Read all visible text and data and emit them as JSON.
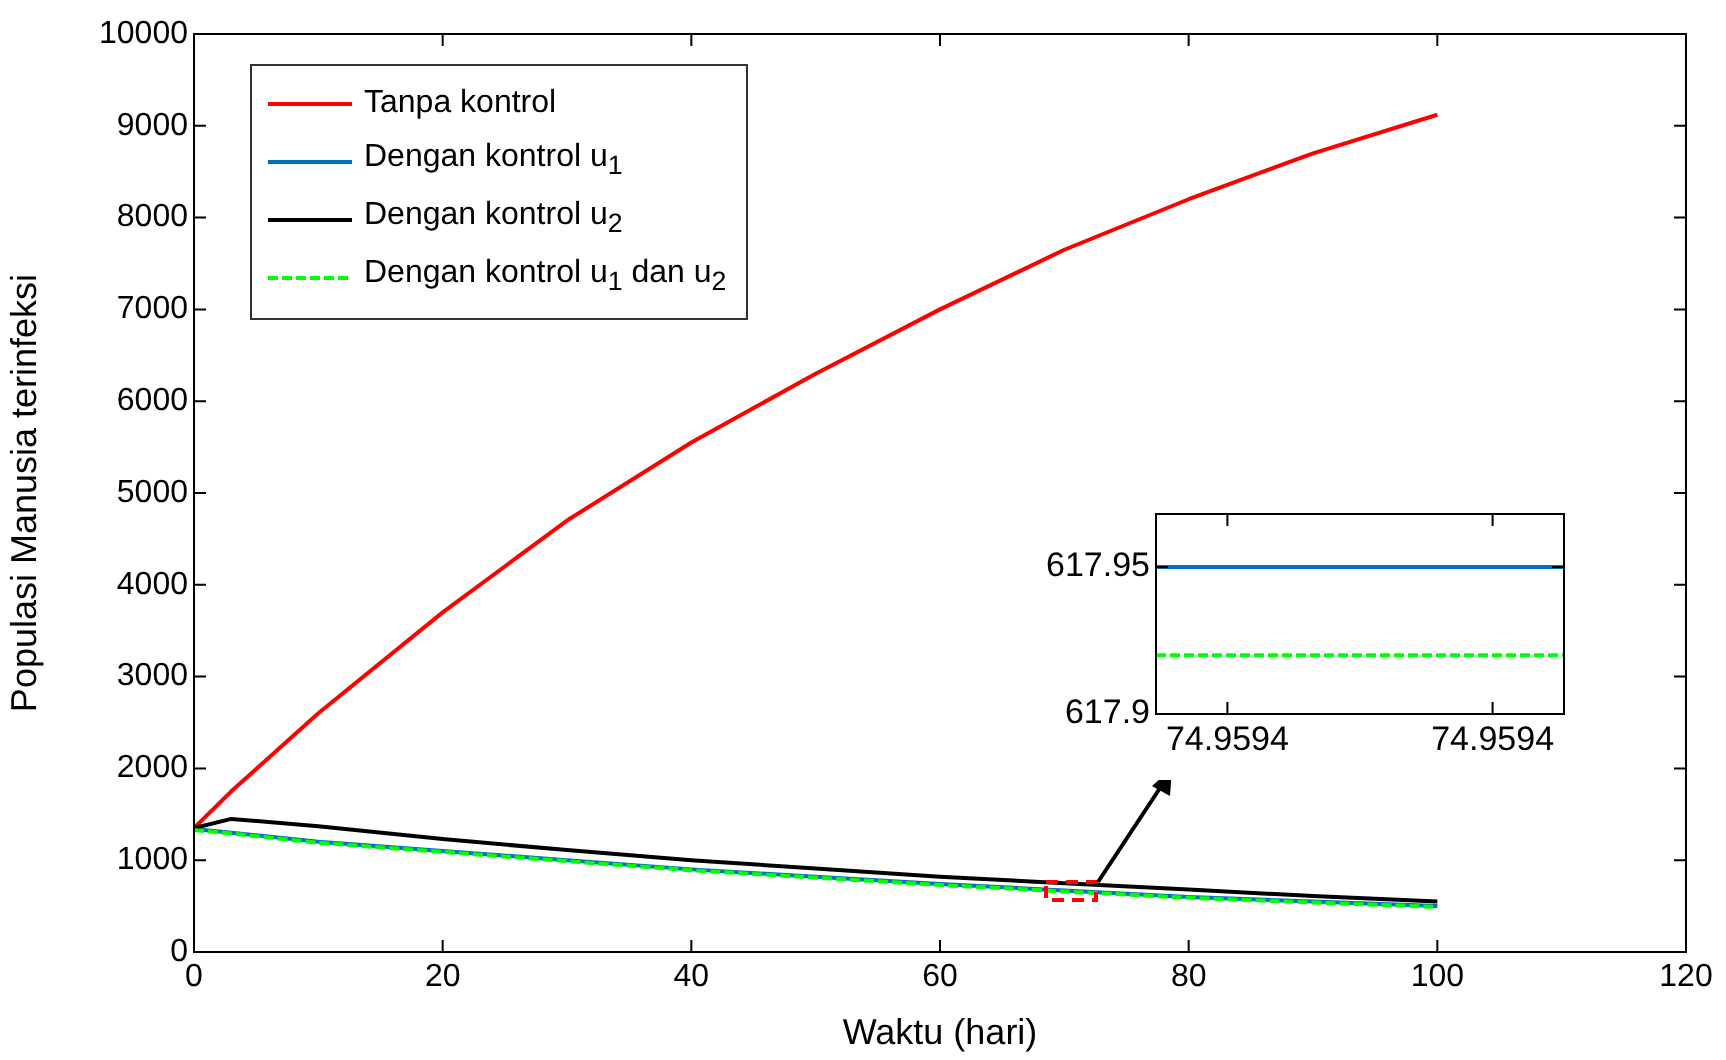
{
  "chart_data": [
    {
      "type": "line",
      "xlabel": "Waktu (hari)",
      "ylabel": "Populasi Manusia terinfeksi",
      "x": [
        0,
        3,
        10,
        20,
        30,
        40,
        50,
        60,
        70,
        80,
        90,
        100
      ],
      "xlim": [
        0,
        120
      ],
      "xticks": [
        0,
        20,
        40,
        60,
        80,
        100,
        120
      ],
      "ylim": [
        0,
        10000
      ],
      "yticks": [
        0,
        1000,
        2000,
        3000,
        4000,
        5000,
        6000,
        7000,
        8000,
        9000,
        10000
      ],
      "grid": false,
      "legend": "top left",
      "series": [
        {
          "name": "Tanpa kontrol",
          "color": "#ff0000",
          "values": [
            1350,
            1750,
            2600,
            3700,
            4700,
            5550,
            6300,
            7000,
            7650,
            8200,
            8700,
            9120
          ]
        },
        {
          "name": "Dengan kontrol u$_{1}$",
          "color": "#0072bd",
          "values": [
            1340,
            1300,
            1200,
            1100,
            1000,
            900,
            820,
            740,
            670,
            600,
            550,
            500
          ]
        },
        {
          "name": "Dengan kontrol u$_{2}$",
          "color": "#000000",
          "values": [
            1350,
            1450,
            1370,
            1230,
            1110,
            1000,
            910,
            820,
            750,
            680,
            610,
            550
          ]
        },
        {
          "name": "Dengan kontrol u$_{1}$ dan u$_{2}$",
          "color": "#00ff00",
          "line_style": "dashed",
          "values": [
            1330,
            1290,
            1190,
            1090,
            990,
            890,
            810,
            730,
            660,
            590,
            540,
            490
          ]
        }
      ]
    },
    {
      "type": "line",
      "x": [
        74.95938,
        74.95942
      ],
      "xlim": [
        74.95938,
        74.95942
      ],
      "xticks": [
        {
          "value": 74.959387,
          "label": "74.9594"
        },
        {
          "value": 74.959413,
          "label": "74.9594"
        }
      ],
      "ylim": [
        617.9,
        617.968
      ],
      "yticks": [
        617.9,
        617.95
      ],
      "grid": false,
      "series": [
        {
          "color": "#0072bd",
          "values": [
            617.95,
            617.95
          ]
        },
        {
          "color": "#00ff00",
          "line_style": "dashed",
          "values": [
            617.92,
            617.92
          ]
        }
      ]
    }
  ]
}
